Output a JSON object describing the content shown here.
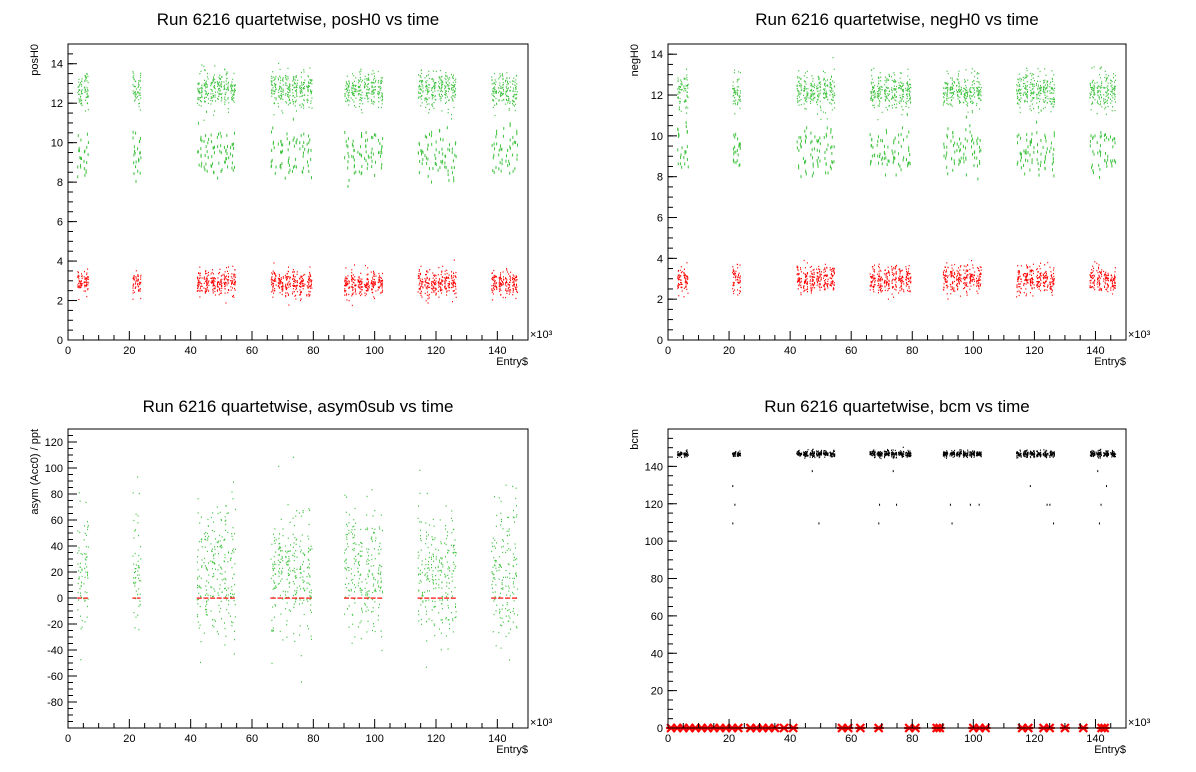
{
  "colors": {
    "green": "#3ec23e",
    "red": "#ff0000",
    "black": "#000000"
  },
  "chart_data": [
    {
      "type": "scatter",
      "title": "Run 6216 quartetwise, posH0 vs time",
      "xlabel": "Entry$",
      "ylabel": "posH0",
      "x_exponent": "×10³",
      "xlim": [
        0,
        150
      ],
      "ylim": [
        0,
        15
      ],
      "xticks": [
        "0",
        "20",
        "40",
        "60",
        "80",
        "100",
        "120",
        "140"
      ],
      "yticks": [
        "0",
        "2",
        "4",
        "6",
        "8",
        "10",
        "12",
        "14"
      ],
      "run_blocks_x": [
        [
          3,
          7
        ],
        [
          21,
          24
        ],
        [
          42,
          55
        ],
        [
          66,
          80
        ],
        [
          90,
          103
        ],
        [
          114,
          127
        ],
        [
          138,
          147
        ]
      ],
      "series": [
        {
          "color": "green",
          "values": {
            "center": 12.7,
            "spread": 0.8,
            "tail_values": [
              9.0,
              10.0
            ]
          }
        },
        {
          "color": "red",
          "values": {
            "center": 2.9,
            "spread": 0.6
          }
        }
      ]
    },
    {
      "type": "scatter",
      "title": "Run 6216 quartetwise, negH0 vs time",
      "xlabel": "Entry$",
      "ylabel": "negH0",
      "x_exponent": "×10³",
      "xlim": [
        0,
        150
      ],
      "ylim": [
        0,
        14.5
      ],
      "xticks": [
        "0",
        "20",
        "40",
        "60",
        "80",
        "100",
        "120",
        "140"
      ],
      "yticks": [
        "0",
        "2",
        "4",
        "6",
        "8",
        "10",
        "12",
        "14"
      ],
      "run_blocks_x": [
        [
          3,
          7
        ],
        [
          21,
          24
        ],
        [
          42,
          55
        ],
        [
          66,
          80
        ],
        [
          90,
          103
        ],
        [
          114,
          127
        ],
        [
          138,
          147
        ]
      ],
      "series": [
        {
          "color": "green",
          "values": {
            "center": 12.2,
            "spread": 0.8,
            "tail_values": [
              8.8,
              9.8
            ]
          }
        },
        {
          "color": "red",
          "values": {
            "center": 3.0,
            "spread": 0.6
          }
        }
      ]
    },
    {
      "type": "scatter",
      "title": "Run 6216 quartetwise, asym0sub vs time",
      "xlabel": "Entry$",
      "ylabel": "asym (Acc0) / ppt",
      "x_exponent": "×10³",
      "xlim": [
        0,
        150
      ],
      "ylim": [
        -100,
        130
      ],
      "xticks": [
        "0",
        "20",
        "40",
        "60",
        "80",
        "100",
        "120",
        "140"
      ],
      "yticks": [
        "-80",
        "-60",
        "-40",
        "-20",
        "0",
        "20",
        "40",
        "60",
        "80",
        "100",
        "120"
      ],
      "run_blocks_x": [
        [
          3,
          7
        ],
        [
          21,
          24
        ],
        [
          42,
          55
        ],
        [
          66,
          80
        ],
        [
          90,
          103
        ],
        [
          114,
          127
        ],
        [
          138,
          147
        ]
      ],
      "series": [
        {
          "color": "green",
          "values": {
            "center": 20,
            "spread": 45
          }
        },
        {
          "color": "red",
          "values": {
            "center": 0,
            "spread": 0
          }
        }
      ]
    },
    {
      "type": "scatter",
      "title": "Run 6216 quartetwise, bcm vs time",
      "xlabel": "Entry$",
      "ylabel": "bcm",
      "x_exponent": "×10³",
      "xlim": [
        0,
        150
      ],
      "ylim": [
        0,
        160
      ],
      "xticks": [
        "0",
        "20",
        "40",
        "60",
        "80",
        "100",
        "120",
        "140"
      ],
      "yticks": [
        "0",
        "20",
        "40",
        "60",
        "80",
        "100",
        "120",
        "140"
      ],
      "run_blocks_x": [
        [
          3,
          7
        ],
        [
          21,
          24
        ],
        [
          42,
          55
        ],
        [
          66,
          80
        ],
        [
          90,
          103
        ],
        [
          114,
          127
        ],
        [
          138,
          147
        ]
      ],
      "series": [
        {
          "color": "black",
          "values": {
            "center": 147,
            "spread": 1.5,
            "dropouts": [
              110,
              120,
              130,
              138
            ]
          }
        },
        {
          "color": "red",
          "marker": "star",
          "values": {
            "y": 0,
            "x": [
              1,
              3,
              5,
              7,
              9,
              11,
              13,
              15,
              17,
              19,
              21,
              23,
              27,
              29,
              31,
              33,
              35,
              38,
              41,
              57,
              59,
              63,
              69,
              79,
              81,
              88,
              89,
              100,
              102,
              104,
              116,
              118,
              123,
              125,
              130,
              136,
              142,
              143
            ]
          }
        }
      ]
    }
  ]
}
